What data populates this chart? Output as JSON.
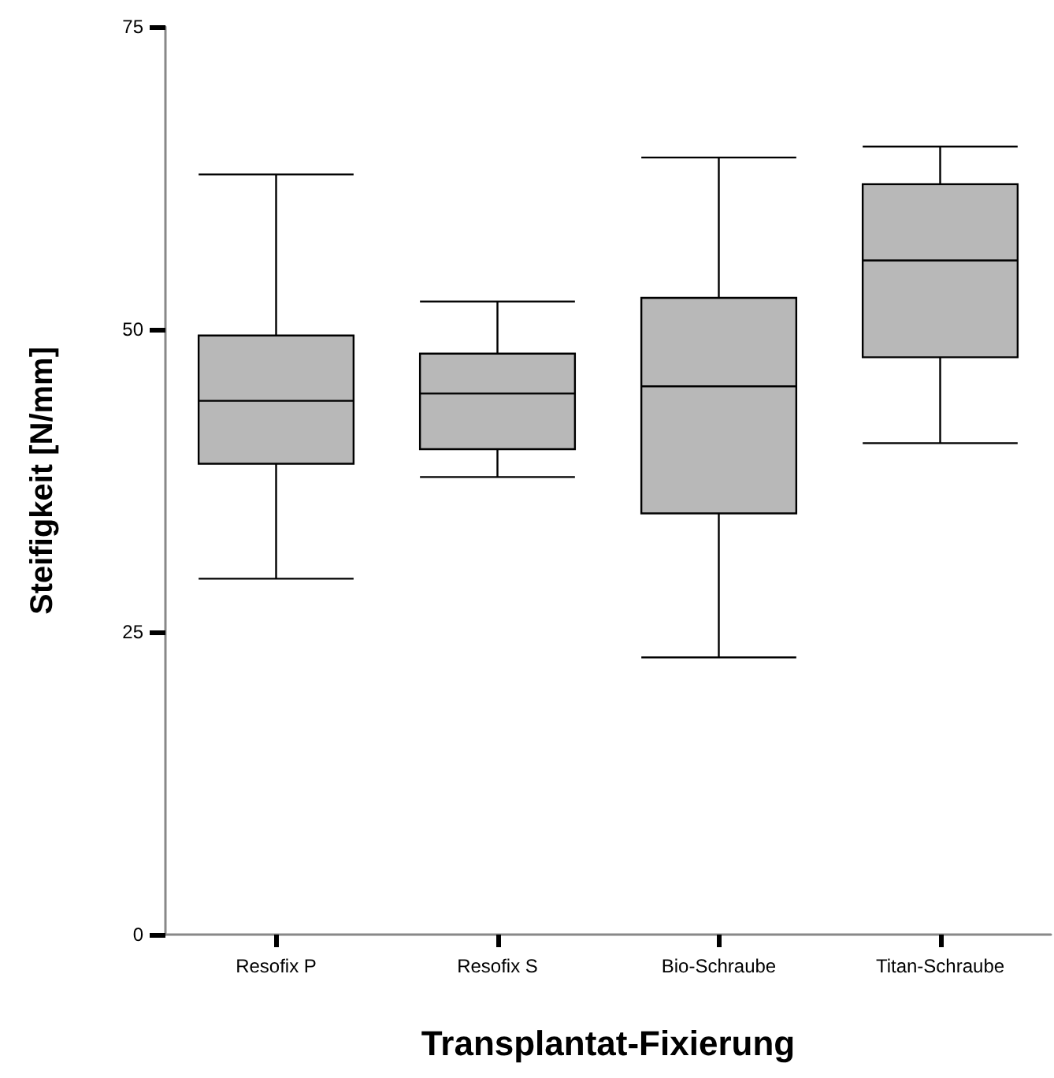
{
  "chart_data": {
    "type": "box",
    "xlabel": "Transplantat-Fixierung",
    "ylabel": "Steifigkeit [N/mm]",
    "categories": [
      "Resofix P",
      "Resofix S",
      "Bio-Schraube",
      "Titan-Schraube"
    ],
    "ylim": [
      0,
      75
    ],
    "yticks": [
      0,
      25,
      50,
      75
    ],
    "grid": false,
    "series": [
      {
        "color": "#b8b8b8",
        "boxes": [
          {
            "low": 29.4,
            "q1": 38.9,
            "median": 44.1,
            "q3": 49.5,
            "high": 62.8
          },
          {
            "low": 37.8,
            "q1": 40.1,
            "median": 44.7,
            "q3": 48.0,
            "high": 52.3
          },
          {
            "low": 22.9,
            "q1": 34.8,
            "median": 45.3,
            "q3": 52.6,
            "high": 64.2
          },
          {
            "low": 40.6,
            "q1": 47.7,
            "median": 55.7,
            "q3": 62.0,
            "high": 65.1
          }
        ]
      }
    ]
  }
}
